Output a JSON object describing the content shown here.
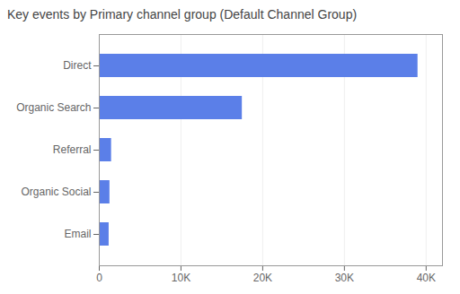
{
  "chart_data": {
    "type": "bar",
    "orientation": "horizontal",
    "title": "Key events by Primary channel group (Default Channel Group)",
    "categories": [
      "Email",
      "Organic Social",
      "Referral",
      "Organic Search",
      "Direct"
    ],
    "values": [
      1200,
      1300,
      1500,
      17500,
      39000
    ],
    "color": "#5b7fe8",
    "xlim": [
      0,
      42000
    ],
    "xticks": [
      0,
      {
        "value": 10000,
        "label": "10K"
      },
      {
        "value": 20000,
        "label": "20K"
      },
      {
        "value": 30000,
        "label": "30K"
      },
      {
        "value": 40000,
        "label": "40K"
      }
    ],
    "grid": true
  }
}
